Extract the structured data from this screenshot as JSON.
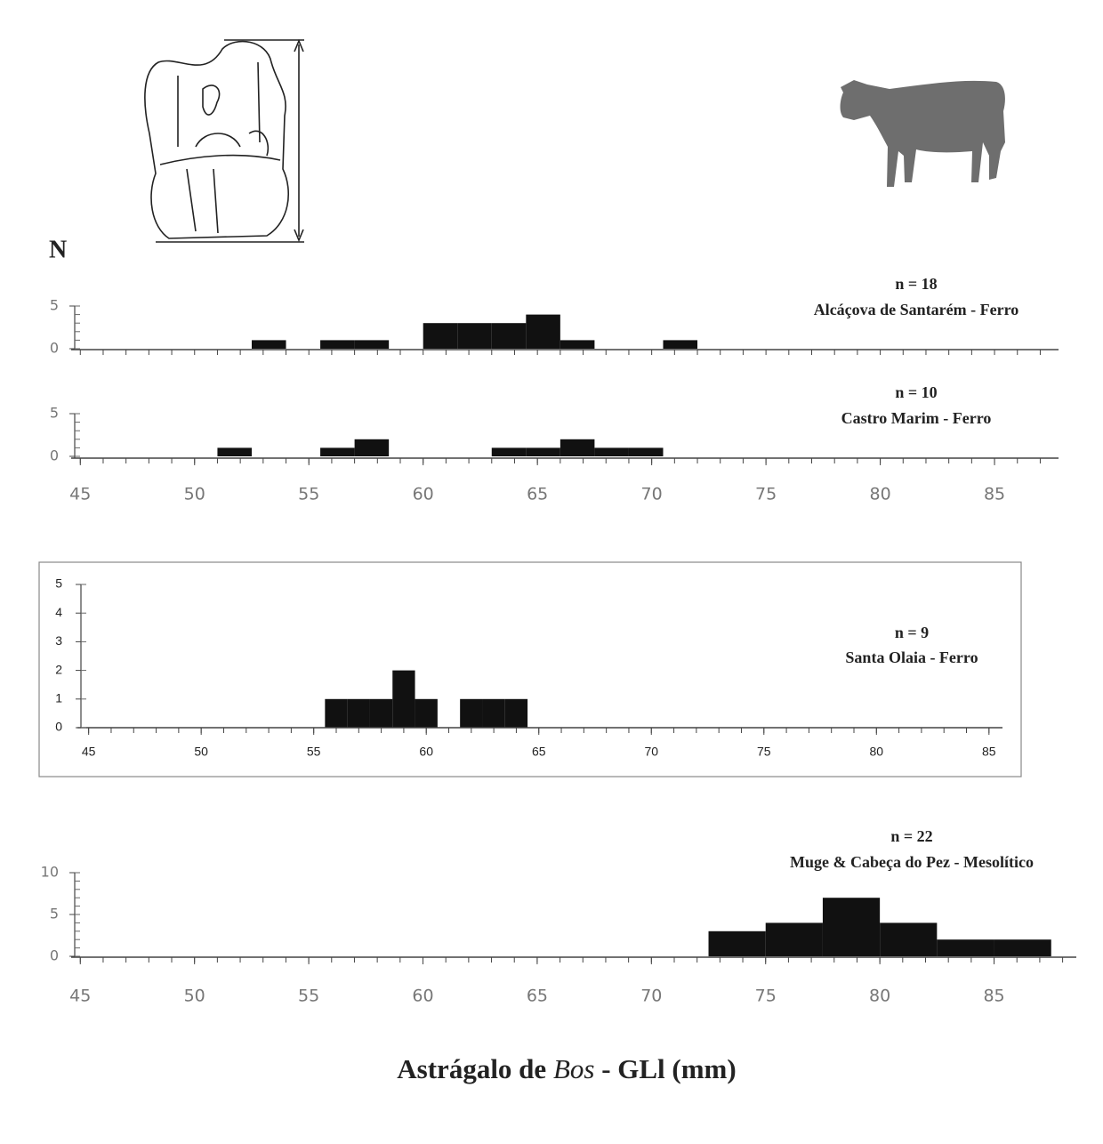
{
  "y_label": "N",
  "x_label": [
    "Astrágalo de ",
    "Bos",
    " - GLl (mm)"
  ],
  "chart_data": [
    {
      "type": "histogram",
      "annotation": "n = 18",
      "title": "Alcáçova de Santarém - Ferro",
      "bins": [
        52.5,
        54,
        55.5,
        57,
        58.5,
        60,
        61.5,
        63,
        64.5,
        66,
        67.5,
        69,
        70.5,
        72
      ],
      "values": [
        1,
        0,
        1,
        1,
        0,
        3,
        3,
        3,
        4,
        1,
        0,
        0,
        1
      ],
      "color": "#111111",
      "xlim": [
        44.6,
        87.8
      ],
      "ylim": [
        0,
        5
      ],
      "yticks": [
        0,
        5
      ]
    },
    {
      "type": "histogram",
      "annotation": "n = 10",
      "title": "Castro Marim - Ferro",
      "bins": [
        51,
        52.5,
        54,
        55.5,
        57,
        58.5,
        60,
        61.5,
        63,
        64.5,
        66,
        67.5,
        69,
        70.5
      ],
      "values": [
        1,
        0,
        0,
        1,
        2,
        0,
        0,
        0,
        1,
        1,
        2,
        1,
        1
      ],
      "color": "#111111",
      "xlim": [
        44.6,
        87.8
      ],
      "ylim": [
        0,
        5
      ],
      "yticks": [
        0,
        5
      ],
      "xticks": [
        45,
        50,
        55,
        60,
        65,
        70,
        75,
        80,
        85
      ]
    },
    {
      "type": "histogram",
      "annotation": "n = 9",
      "title": "Santa Olaia - Ferro",
      "bins": [
        55.5,
        56.5,
        57.5,
        58.5,
        59.5,
        60.5,
        61.5,
        62.5,
        63.5,
        64.5
      ],
      "values": [
        1,
        1,
        1,
        2,
        1,
        0,
        1,
        1,
        1
      ],
      "color": "#111111",
      "xlim": [
        44.5,
        85.6
      ],
      "ylim": [
        0,
        5
      ],
      "yticks": [
        0,
        1,
        2,
        3,
        4,
        5
      ],
      "xticks": [
        45,
        50,
        55,
        60,
        65,
        70,
        75,
        80,
        85
      ]
    },
    {
      "type": "histogram",
      "annotation": "n = 22",
      "title": "Muge & Cabeça do Pez - Mesolítico",
      "bins": [
        72.5,
        75,
        77.5,
        80,
        82.5,
        85,
        87.5
      ],
      "values": [
        3,
        4,
        7,
        4,
        2,
        2
      ],
      "color": "#111111",
      "xlim": [
        44.6,
        88.6
      ],
      "ylim": [
        0,
        10
      ],
      "yticks": [
        0,
        5,
        10
      ],
      "xticks": [
        45,
        50,
        55,
        60,
        65,
        70,
        75,
        80,
        85
      ]
    }
  ]
}
